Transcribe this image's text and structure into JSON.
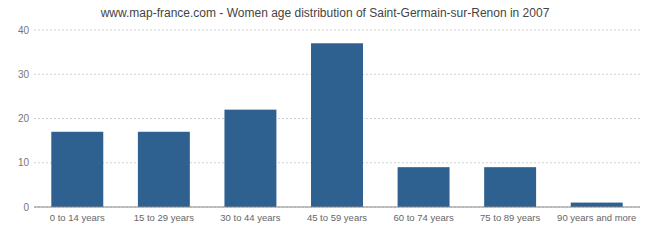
{
  "chart_data": {
    "type": "bar",
    "title": "www.map-france.com - Women age distribution of Saint-Germain-sur-Renon in 2007",
    "categories": [
      "0 to 14 years",
      "15 to 29 years",
      "30 to 44 years",
      "45 to 59 years",
      "60 to 74 years",
      "75 to 89 years",
      "90 years and more"
    ],
    "values": [
      17,
      17,
      22,
      37,
      9,
      9,
      1
    ],
    "color": "#2e6090",
    "ylim": [
      0,
      40
    ],
    "yticks": [
      0,
      10,
      20,
      30,
      40
    ],
    "grid": true
  }
}
